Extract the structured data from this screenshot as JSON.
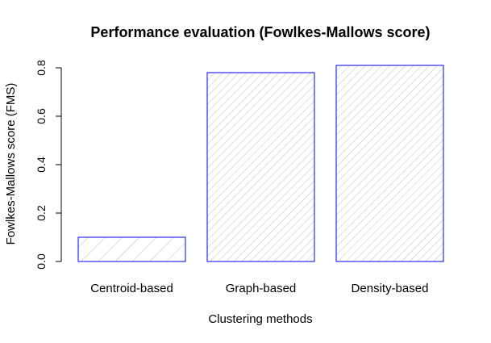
{
  "chart_data": {
    "type": "bar",
    "title": "Performance evaluation (Fowlkes-Mallows score)",
    "xlabel": "Clustering methods",
    "ylabel": "Fowlkes-Mallows score (FMS)",
    "categories": [
      "Centroid-based",
      "Graph-based",
      "Density-based"
    ],
    "values": [
      0.1,
      0.78,
      0.81
    ],
    "ylim": [
      0,
      0.8
    ],
    "yticks": [
      "0.0",
      "0.2",
      "0.4",
      "0.6",
      "0.8"
    ],
    "grid": false,
    "bar_fill": "hatched",
    "colors": {
      "bar_border": "#0000ff",
      "hatch": "#bebebe",
      "axis": "#000000"
    }
  }
}
